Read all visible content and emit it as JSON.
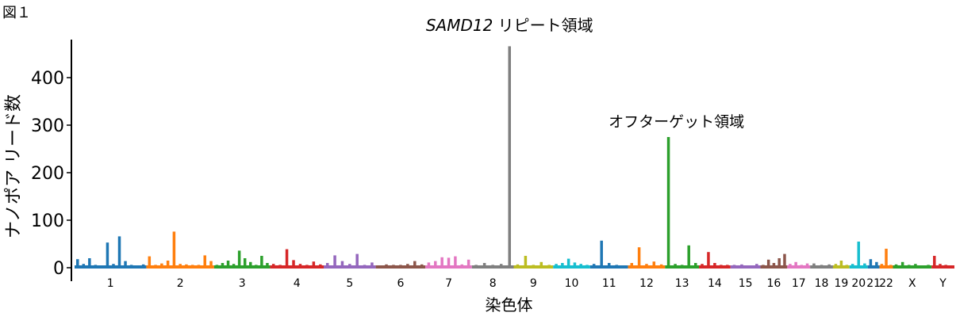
{
  "figure_label": "図１",
  "chart_data": {
    "type": "bar",
    "title": "",
    "xlabel": "染色体",
    "ylabel": "ナノポア リード数",
    "ylim": [
      0,
      480
    ],
    "yticks": [
      0,
      100,
      200,
      300,
      400
    ],
    "grid": false,
    "annotations": [
      {
        "text": "SAMD12 リピート領域",
        "italic_part": "SAMD12",
        "rest": " リピート領域",
        "x_chromosome": "8"
      },
      {
        "text": "オフターゲット領域",
        "x_chromosome": "13"
      }
    ],
    "series": [
      {
        "chromosome": "1",
        "color": "#1f77b4",
        "peaks": [
          18,
          8,
          20,
          6,
          5,
          53,
          8,
          66,
          14,
          6,
          5,
          7
        ]
      },
      {
        "chromosome": "2",
        "color": "#ff7f0e",
        "peaks": [
          24,
          6,
          9,
          15,
          76,
          8,
          7,
          6,
          6,
          26,
          14
        ]
      },
      {
        "chromosome": "3",
        "color": "#2ca02c",
        "peaks": [
          6,
          10,
          15,
          8,
          36,
          20,
          12,
          6,
          25,
          10
        ]
      },
      {
        "chromosome": "4",
        "color": "#d62728",
        "peaks": [
          8,
          6,
          39,
          16,
          8,
          6,
          13,
          7
        ]
      },
      {
        "chromosome": "5",
        "color": "#9467bd",
        "peaks": [
          10,
          26,
          14,
          8,
          29,
          6,
          11
        ]
      },
      {
        "chromosome": "6",
        "color": "#8c564b",
        "peaks": [
          5,
          7,
          6,
          6,
          8,
          14,
          7
        ]
      },
      {
        "chromosome": "7",
        "color": "#e377c2",
        "peaks": [
          11,
          14,
          22,
          21,
          24,
          7,
          17
        ]
      },
      {
        "chromosome": "8",
        "color": "#7f7f7f",
        "peaks": [
          6,
          10,
          6,
          8,
          466
        ]
      },
      {
        "chromosome": "9",
        "color": "#bcbd22",
        "peaks": [
          7,
          25,
          6,
          12,
          6
        ]
      },
      {
        "chromosome": "10",
        "color": "#17becf",
        "peaks": [
          8,
          10,
          19,
          11,
          8,
          6
        ]
      },
      {
        "chromosome": "11",
        "color": "#1f77b4",
        "peaks": [
          8,
          57,
          10,
          6,
          5
        ]
      },
      {
        "chromosome": "12",
        "color": "#ff7f0e",
        "peaks": [
          10,
          43,
          8,
          13,
          7
        ]
      },
      {
        "chromosome": "13",
        "color": "#2ca02c",
        "peaks": [
          275,
          8,
          6,
          47,
          10
        ]
      },
      {
        "chromosome": "14",
        "color": "#d62728",
        "peaks": [
          8,
          33,
          10,
          6,
          6
        ]
      },
      {
        "chromosome": "15",
        "color": "#9467bd",
        "peaks": [
          6,
          7,
          5,
          8
        ]
      },
      {
        "chromosome": "16",
        "color": "#8c564b",
        "peaks": [
          6,
          17,
          10,
          20,
          29
        ]
      },
      {
        "chromosome": "17",
        "color": "#e377c2",
        "peaks": [
          8,
          12,
          6,
          9
        ]
      },
      {
        "chromosome": "18",
        "color": "#7f7f7f",
        "peaks": [
          9,
          6,
          7
        ]
      },
      {
        "chromosome": "19",
        "color": "#bcbd22",
        "peaks": [
          8,
          15,
          6
        ]
      },
      {
        "chromosome": "20",
        "color": "#17becf",
        "peaks": [
          8,
          55,
          9
        ]
      },
      {
        "chromosome": "21",
        "color": "#1f77b4",
        "peaks": [
          18,
          12
        ]
      },
      {
        "chromosome": "22",
        "color": "#ff7f0e",
        "peaks": [
          8,
          40,
          6
        ]
      },
      {
        "chromosome": "X",
        "color": "#2ca02c",
        "peaks": [
          7,
          12,
          6,
          8,
          5,
          6
        ]
      },
      {
        "chromosome": "Y",
        "color": "#d62728",
        "peaks": [
          25,
          8,
          6,
          5
        ]
      }
    ]
  }
}
